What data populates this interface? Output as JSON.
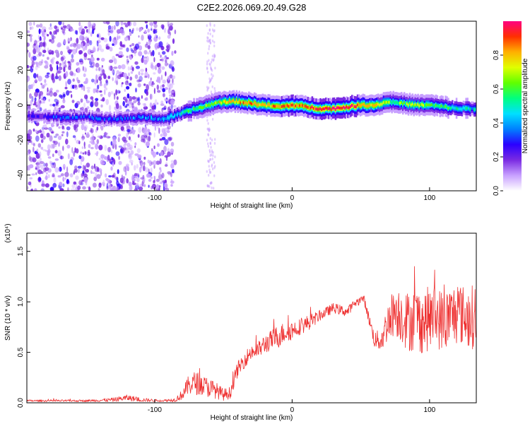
{
  "figure_title": "C2E2.2026.069.20.49.G28",
  "chart_data": [
    {
      "type": "heatmap",
      "title": "C2E2.2026.069.20.49.G28",
      "xlabel": "Height of straight line (km)",
      "ylabel": "Frequency (Hz)",
      "xlim": [
        -193,
        134
      ],
      "ylim": [
        -49,
        48
      ],
      "xticks": [
        -100,
        0,
        100
      ],
      "xtick_labels": [
        "-100",
        "0",
        "100"
      ],
      "yticks": [
        -40,
        -20,
        0,
        20,
        40
      ],
      "ytick_labels": [
        "-40",
        "-20",
        "0",
        "20",
        "40"
      ],
      "colorbar": {
        "label": "Normalized spectral amplitude",
        "range": [
          0.0,
          1.0
        ],
        "ticks": [
          0.0,
          0.2,
          0.4,
          0.6,
          0.8
        ],
        "tick_labels": [
          "0.0",
          "0.2",
          "0.4",
          "0.6",
          "0.8"
        ],
        "colors": [
          "#ffffff",
          "#c8a0ff",
          "#7a2be2",
          "#2b00ff",
          "#0080ff",
          "#00e0ff",
          "#00ff80",
          "#60ff00",
          "#e0ff00",
          "#ffb000",
          "#ff3000",
          "#ff0080"
        ]
      },
      "ridge_km": [
        -193,
        -170,
        -150,
        -130,
        -110,
        -95,
        -85,
        -75,
        -65,
        -57,
        -50,
        -40,
        -30,
        -20,
        -10,
        0,
        10,
        20,
        30,
        40,
        50,
        60,
        70,
        80,
        90,
        100,
        110,
        120,
        134
      ],
      "ridge_hz": [
        -6,
        -7,
        -7,
        -8,
        -7,
        -8,
        -6,
        -3,
        -1,
        1,
        2,
        2,
        1,
        0,
        -1,
        0,
        -1,
        -2,
        -2,
        -1,
        0,
        0,
        2,
        1,
        0,
        0,
        -1,
        -2,
        -2
      ],
      "ridge_amp": [
        0.25,
        0.3,
        0.3,
        0.3,
        0.35,
        0.4,
        0.45,
        0.55,
        0.6,
        0.65,
        0.75,
        0.8,
        0.85,
        0.8,
        0.85,
        0.9,
        0.85,
        0.95,
        0.95,
        0.95,
        0.85,
        0.8,
        0.65,
        0.6,
        0.7,
        0.6,
        0.55,
        0.5,
        0.45
      ],
      "noise_region_km": [
        -193,
        -85
      ],
      "noise_strip_km": [
        -62,
        -56
      ]
    },
    {
      "type": "line",
      "xlabel": "Height of straight line (km)",
      "ylabel": "SNR (10 * v/v)",
      "y_multiplier": "(x10⁴)",
      "xlim": [
        -193,
        134
      ],
      "ylim": [
        0,
        1.68
      ],
      "xticks": [
        -100,
        0,
        100
      ],
      "xtick_labels": [
        "-100",
        "0",
        "100"
      ],
      "yticks": [
        0.0,
        0.5,
        1.0,
        1.5
      ],
      "ytick_labels": [
        "0.0",
        "0.5",
        "1.0",
        "1.5"
      ],
      "series": [
        {
          "name": "SNR",
          "color": "#ee3030",
          "x": [
            -193,
            -170,
            -150,
            -130,
            -120,
            -110,
            -95,
            -85,
            -80,
            -75,
            -70,
            -65,
            -60,
            -55,
            -50,
            -45,
            -40,
            -35,
            -30,
            -25,
            -20,
            -15,
            -10,
            -5,
            0,
            5,
            10,
            15,
            20,
            25,
            30,
            35,
            40,
            45,
            50,
            52,
            55,
            60,
            65,
            70,
            75,
            80,
            85,
            90,
            95,
            100,
            105,
            110,
            115,
            120,
            125,
            130,
            134
          ],
          "y_mean": [
            0.02,
            0.02,
            0.02,
            0.03,
            0.05,
            0.03,
            0.02,
            0.03,
            0.08,
            0.18,
            0.2,
            0.17,
            0.15,
            0.12,
            0.08,
            0.1,
            0.32,
            0.42,
            0.5,
            0.52,
            0.58,
            0.62,
            0.66,
            0.7,
            0.72,
            0.75,
            0.78,
            0.82,
            0.86,
            0.9,
            0.94,
            0.92,
            0.9,
            0.98,
            1.02,
            1.04,
            0.88,
            0.62,
            0.62,
            0.82,
            0.92,
            0.86,
            0.8,
            0.84,
            0.8,
            0.84,
            0.86,
            0.8,
            0.84,
            0.9,
            0.86,
            0.84,
            0.88
          ],
          "y_spread": [
            0.01,
            0.01,
            0.01,
            0.02,
            0.03,
            0.02,
            0.01,
            0.02,
            0.05,
            0.1,
            0.12,
            0.1,
            0.1,
            0.08,
            0.06,
            0.06,
            0.08,
            0.08,
            0.08,
            0.08,
            0.1,
            0.1,
            0.12,
            0.1,
            0.1,
            0.08,
            0.08,
            0.07,
            0.05,
            0.05,
            0.05,
            0.05,
            0.05,
            0.04,
            0.04,
            0.04,
            0.05,
            0.08,
            0.12,
            0.2,
            0.25,
            0.28,
            0.3,
            0.32,
            0.32,
            0.32,
            0.32,
            0.3,
            0.32,
            0.32,
            0.3,
            0.32,
            0.32
          ]
        }
      ]
    }
  ]
}
